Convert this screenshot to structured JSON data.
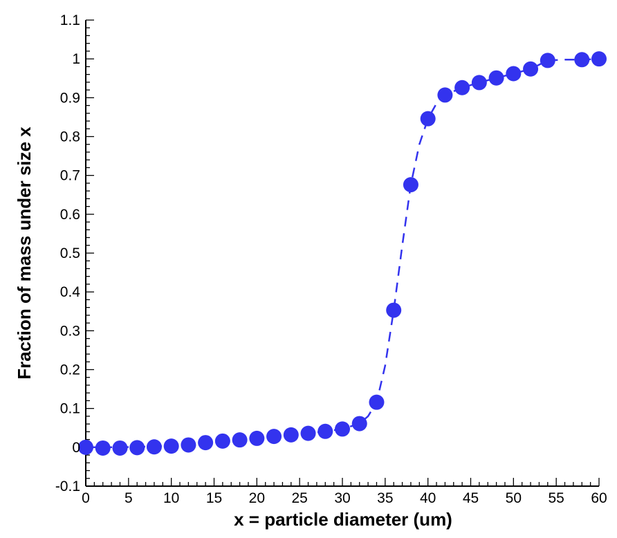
{
  "chart_data": {
    "type": "scatter",
    "title": "",
    "xlabel": "x = particle diameter (um)",
    "ylabel": "Fraction of mass under size x",
    "xlim": [
      0,
      60
    ],
    "ylim": [
      -0.1,
      1.1
    ],
    "x_ticks": [
      0,
      5,
      10,
      15,
      20,
      25,
      30,
      35,
      40,
      45,
      50,
      55,
      60
    ],
    "x_tick_labels": [
      "0",
      "5",
      "10",
      "15",
      "20",
      "25",
      "30",
      "35",
      "40",
      "45",
      "50",
      "55",
      "60"
    ],
    "y_ticks": [
      -0.1,
      0,
      0.1,
      0.2,
      0.3,
      0.4,
      0.5,
      0.6,
      0.7,
      0.8,
      0.9,
      1,
      1.1
    ],
    "y_tick_labels": [
      "-0.1",
      "0",
      "0.1",
      "0.2",
      "0.3",
      "0.4",
      "0.5",
      "0.6",
      "0.7",
      "0.8",
      "0.9",
      "1",
      "1.1"
    ],
    "grid": false,
    "legend": "none",
    "marker_color": "#3333ee",
    "line_color": "#3333ee",
    "series": [
      {
        "style": "markers",
        "x": [
          0,
          2,
          4,
          6,
          8,
          10,
          12,
          14,
          16,
          18,
          20,
          22,
          24,
          26,
          28,
          30,
          32,
          34,
          36,
          38,
          40,
          42,
          44,
          46,
          48,
          50,
          52,
          54,
          58,
          60
        ],
        "y": [
          0,
          -0.002,
          -0.002,
          -0.001,
          0.001,
          0.003,
          0.006,
          0.012,
          0.016,
          0.019,
          0.023,
          0.028,
          0.032,
          0.036,
          0.041,
          0.047,
          0.061,
          0.116,
          0.353,
          0.676,
          0.846,
          0.907,
          0.926,
          0.939,
          0.951,
          0.962,
          0.974,
          0.996,
          0.998,
          1.0
        ]
      },
      {
        "style": "dashed-line",
        "x": [
          0,
          2,
          4,
          6,
          8,
          10,
          12,
          14,
          16,
          18,
          20,
          22,
          24,
          26,
          28,
          30,
          32,
          33,
          34,
          35,
          36,
          37,
          38,
          39,
          40,
          41,
          42,
          44,
          46,
          48,
          50,
          52,
          54,
          56,
          58,
          60
        ],
        "y": [
          0,
          0,
          0,
          0.001,
          0.002,
          0.004,
          0.007,
          0.011,
          0.015,
          0.019,
          0.023,
          0.028,
          0.032,
          0.036,
          0.041,
          0.047,
          0.061,
          0.08,
          0.116,
          0.21,
          0.353,
          0.52,
          0.676,
          0.78,
          0.846,
          0.885,
          0.907,
          0.926,
          0.939,
          0.951,
          0.962,
          0.974,
          0.996,
          0.998,
          0.998,
          1.0
        ]
      }
    ]
  }
}
